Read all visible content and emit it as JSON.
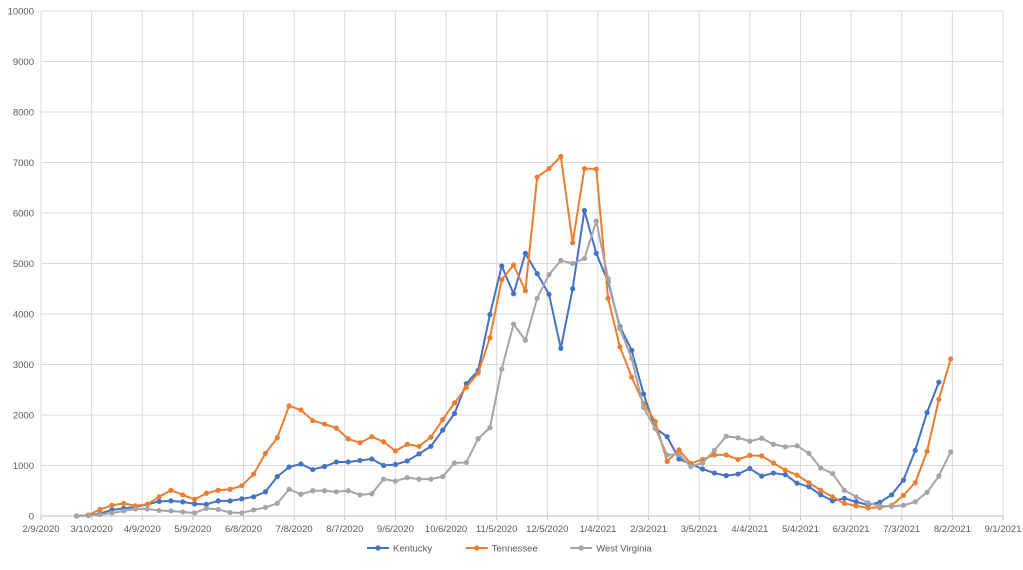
{
  "colors": {
    "Kentucky": "#4472c4",
    "Tennessee": "#ed7d31",
    "West Virginia": "#a5a5a5",
    "grid": "#d9d9d9",
    "axis": "#bfbfbf",
    "text": "#595959"
  },
  "chart_data": {
    "type": "line",
    "title": "",
    "xlabel": "",
    "ylabel": "",
    "ylim": [
      0,
      10000
    ],
    "yticks": [
      0,
      1000,
      2000,
      3000,
      4000,
      5000,
      6000,
      7000,
      8000,
      9000,
      10000
    ],
    "ytick_labels": [
      "0",
      "1000",
      "2000",
      "3000",
      "4000",
      "5000",
      "6000",
      "7000",
      "8000",
      "9000",
      "10000"
    ],
    "xlim": [
      "2020-02-09",
      "2021-09-01"
    ],
    "xticks": [
      "2020-02-09",
      "2020-03-10",
      "2020-04-09",
      "2020-05-09",
      "2020-06-08",
      "2020-07-08",
      "2020-08-07",
      "2020-09-06",
      "2020-10-06",
      "2020-11-05",
      "2020-12-05",
      "2021-01-04",
      "2021-02-03",
      "2021-03-05",
      "2021-04-04",
      "2021-05-04",
      "2021-06-03",
      "2021-07-03",
      "2021-08-02",
      "2021-09-01"
    ],
    "xtick_labels": [
      "2/9/2020",
      "3/10/2020",
      "4/9/2020",
      "5/9/2020",
      "6/8/2020",
      "7/8/2020",
      "8/7/2020",
      "9/6/2020",
      "10/6/2020",
      "11/5/2020",
      "12/5/2020",
      "1/4/2021",
      "2/3/2021",
      "3/5/2021",
      "4/4/2021",
      "5/4/2021",
      "6/3/2021",
      "7/3/2021",
      "8/2/2021",
      "9/1/2021"
    ],
    "grid": true,
    "legend_position": "bottom",
    "x": [
      "2020-03-01",
      "2020-03-08",
      "2020-03-15",
      "2020-03-22",
      "2020-03-29",
      "2020-04-05",
      "2020-04-12",
      "2020-04-19",
      "2020-04-26",
      "2020-05-03",
      "2020-05-10",
      "2020-05-17",
      "2020-05-24",
      "2020-05-31",
      "2020-06-07",
      "2020-06-14",
      "2020-06-21",
      "2020-06-28",
      "2020-07-05",
      "2020-07-12",
      "2020-07-19",
      "2020-07-26",
      "2020-08-02",
      "2020-08-09",
      "2020-08-16",
      "2020-08-23",
      "2020-08-30",
      "2020-09-06",
      "2020-09-13",
      "2020-09-20",
      "2020-09-27",
      "2020-10-04",
      "2020-10-11",
      "2020-10-18",
      "2020-10-25",
      "2020-11-01",
      "2020-11-08",
      "2020-11-15",
      "2020-11-22",
      "2020-11-29",
      "2020-12-06",
      "2020-12-13",
      "2020-12-20",
      "2020-12-27",
      "2021-01-03",
      "2021-01-10",
      "2021-01-17",
      "2021-01-24",
      "2021-01-31",
      "2021-02-07",
      "2021-02-14",
      "2021-02-21",
      "2021-02-28",
      "2021-03-07",
      "2021-03-14",
      "2021-03-21",
      "2021-03-28",
      "2021-04-04",
      "2021-04-11",
      "2021-04-18",
      "2021-04-25",
      "2021-05-02",
      "2021-05-09",
      "2021-05-16",
      "2021-05-23",
      "2021-05-30",
      "2021-06-06",
      "2021-06-13",
      "2021-06-20",
      "2021-06-27",
      "2021-07-04",
      "2021-07-11",
      "2021-07-18",
      "2021-07-25",
      "2021-08-01"
    ],
    "series": [
      {
        "name": "Kentucky",
        "values": [
          0,
          10,
          50,
          120,
          150,
          180,
          230,
          290,
          300,
          280,
          240,
          230,
          300,
          300,
          340,
          380,
          480,
          780,
          970,
          1030,
          920,
          980,
          1070,
          1070,
          1100,
          1130,
          1000,
          1020,
          1090,
          1230,
          1380,
          1700,
          2030,
          2620,
          2880,
          3990,
          4950,
          4400,
          5200,
          4800,
          4390,
          3320,
          4500,
          6050,
          5200,
          4640,
          3750,
          3280,
          2420,
          1740,
          1570,
          1130,
          1030,
          930,
          850,
          800,
          830,
          940,
          790,
          850,
          820,
          650,
          580,
          420,
          300,
          350,
          280,
          220,
          270,
          420,
          710,
          1300,
          2050,
          2650,
          null
        ]
      },
      {
        "name": "Tennessee",
        "values": [
          0,
          20,
          130,
          210,
          250,
          200,
          230,
          380,
          510,
          420,
          330,
          450,
          510,
          530,
          600,
          830,
          1240,
          1550,
          2180,
          2100,
          1890,
          1820,
          1740,
          1530,
          1450,
          1570,
          1470,
          1290,
          1420,
          1380,
          1560,
          1910,
          2240,
          2550,
          2830,
          3530,
          4680,
          4970,
          4460,
          6710,
          6880,
          7120,
          5410,
          6880,
          6870,
          4310,
          3350,
          2750,
          2230,
          1870,
          1080,
          1310,
          1040,
          1120,
          1210,
          1210,
          1120,
          1200,
          1190,
          1050,
          910,
          810,
          660,
          510,
          380,
          250,
          200,
          160,
          170,
          210,
          410,
          660,
          1280,
          2310,
          3110
        ]
      },
      {
        "name": "West Virginia",
        "values": [
          0,
          10,
          30,
          60,
          100,
          140,
          140,
          110,
          100,
          80,
          60,
          150,
          130,
          70,
          60,
          120,
          170,
          250,
          530,
          430,
          500,
          500,
          480,
          500,
          420,
          440,
          730,
          690,
          760,
          730,
          730,
          780,
          1050,
          1060,
          1530,
          1750,
          2910,
          3800,
          3480,
          4310,
          4780,
          5060,
          5000,
          5100,
          5840,
          4700,
          3710,
          3120,
          2150,
          1730,
          1210,
          1220,
          980,
          1050,
          1300,
          1580,
          1550,
          1480,
          1540,
          1420,
          1370,
          1390,
          1240,
          950,
          840,
          510,
          380,
          260,
          200,
          190,
          210,
          280,
          470,
          790,
          1270
        ]
      }
    ]
  }
}
